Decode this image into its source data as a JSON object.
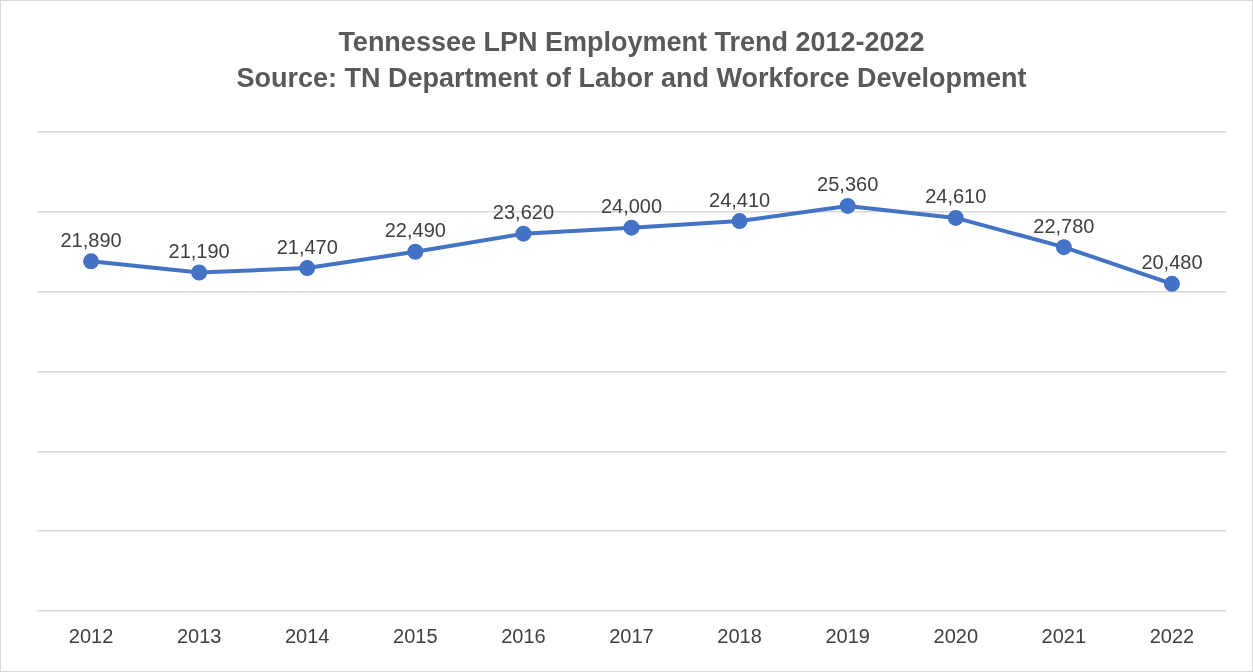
{
  "chart_data": {
    "type": "line",
    "title": "Tennessee LPN Employment Trend 2012-2022",
    "subtitle": "Source: TN Department of Labor and Workforce Development",
    "categories": [
      "2012",
      "2013",
      "2014",
      "2015",
      "2016",
      "2017",
      "2018",
      "2019",
      "2020",
      "2021",
      "2022"
    ],
    "values": [
      21890,
      21190,
      21470,
      22490,
      23620,
      24000,
      24410,
      25360,
      24610,
      22780,
      20480
    ],
    "value_labels": [
      "21,890",
      "21,190",
      "21,470",
      "22,490",
      "23,620",
      "24,000",
      "24,410",
      "25,360",
      "24,610",
      "22,780",
      "20,480"
    ],
    "color": "#4472c4",
    "marker": "circle",
    "line_style": "solid",
    "ylim": [
      0,
      30000
    ],
    "yticks": [
      {
        "value": 0,
        "label": null
      },
      {
        "value": 5000,
        "label": null
      },
      {
        "value": 10000,
        "label": null
      },
      {
        "value": 15000,
        "label": null
      },
      {
        "value": 20000,
        "label": null
      },
      {
        "value": 25000,
        "label": null
      },
      {
        "value": 30000,
        "label": null
      }
    ],
    "grid": "y",
    "tick_labels": "x"
  }
}
